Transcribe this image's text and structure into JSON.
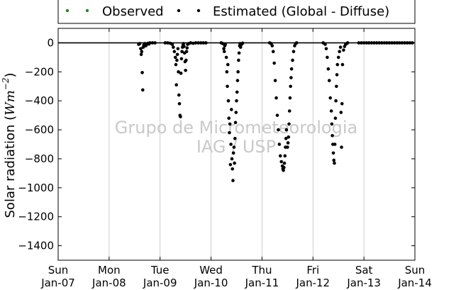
{
  "chart_data": {
    "type": "scatter",
    "ylabel": "Solar radiation (",
    "ylabel_unit_base": "Wm",
    "ylabel_unit_exp": "−2",
    "ylabel_close": ")",
    "ylim": [
      -1500,
      100
    ],
    "yticks": [
      0,
      -200,
      -400,
      -600,
      -800,
      -1000,
      -1200,
      -1400
    ],
    "ytick_labels": [
      "0",
      "−200",
      "−400",
      "−600",
      "−800",
      "−1000",
      "−1200",
      "−1400"
    ],
    "xlim": [
      0,
      7
    ],
    "xticks": [
      {
        "day": "Sun",
        "date": "Jan-07"
      },
      {
        "day": "Mon",
        "date": "Jan-08"
      },
      {
        "day": "Tue",
        "date": "Jan-09"
      },
      {
        "day": "Wed",
        "date": "Jan-10"
      },
      {
        "day": "Thu",
        "date": "Jan-11"
      },
      {
        "day": "Fri",
        "date": "Jan-12"
      },
      {
        "day": "Sat",
        "date": "Jan-13"
      },
      {
        "day": "Sun",
        "date": "Jan-14"
      }
    ],
    "grid": "vertical",
    "legend": {
      "placement": "top-center",
      "entries": [
        {
          "label": "Observed",
          "color": "#228b22"
        },
        {
          "label": "Estimated (Global - Diffuse)",
          "color": "#000000"
        }
      ]
    },
    "watermark": [
      "Grupo de Micrometeorologia",
      "IAG / USP"
    ],
    "series": [
      {
        "name": "Estimated (Global - Diffuse)",
        "color": "#000000",
        "points": [
          [
            1.58,
            -10
          ],
          [
            1.6,
            -5
          ],
          [
            1.62,
            -40
          ],
          [
            1.63,
            -80
          ],
          [
            1.64,
            -60
          ],
          [
            1.65,
            -205
          ],
          [
            1.66,
            -325
          ],
          [
            1.67,
            -30
          ],
          [
            1.68,
            -15
          ],
          [
            1.7,
            -5
          ],
          [
            1.72,
            -20
          ],
          [
            1.74,
            -10
          ],
          [
            1.76,
            -3
          ],
          [
            1.78,
            -8
          ],
          [
            1.8,
            0
          ],
          [
            1.85,
            0
          ],
          [
            1.9,
            0
          ],
          [
            2.1,
            0
          ],
          [
            2.15,
            0
          ],
          [
            2.2,
            -3
          ],
          [
            2.24,
            -10
          ],
          [
            2.26,
            -30
          ],
          [
            2.28,
            -60
          ],
          [
            2.3,
            -100
          ],
          [
            2.31,
            -150
          ],
          [
            2.32,
            -290
          ],
          [
            2.33,
            -120
          ],
          [
            2.34,
            -80
          ],
          [
            2.35,
            -40
          ],
          [
            2.36,
            -200
          ],
          [
            2.37,
            -360
          ],
          [
            2.38,
            -420
          ],
          [
            2.39,
            -500
          ],
          [
            2.4,
            -510
          ],
          [
            2.41,
            -210
          ],
          [
            2.42,
            -110
          ],
          [
            2.43,
            -60
          ],
          [
            2.44,
            -30
          ],
          [
            2.45,
            -15
          ],
          [
            2.46,
            -5
          ],
          [
            2.47,
            -25
          ],
          [
            2.48,
            -70
          ],
          [
            2.49,
            -130
          ],
          [
            2.5,
            -190
          ],
          [
            2.51,
            -120
          ],
          [
            2.52,
            -60
          ],
          [
            2.53,
            -35
          ],
          [
            2.54,
            -10
          ],
          [
            2.56,
            -5
          ],
          [
            2.6,
            0
          ],
          [
            2.65,
            -3
          ],
          [
            2.7,
            0
          ],
          [
            2.75,
            0
          ],
          [
            2.8,
            0
          ],
          [
            2.85,
            0
          ],
          [
            2.9,
            0
          ],
          [
            3.2,
            0
          ],
          [
            3.23,
            -5
          ],
          [
            3.25,
            -40
          ],
          [
            3.26,
            -60
          ],
          [
            3.27,
            -20
          ],
          [
            3.28,
            -10
          ],
          [
            3.3,
            -100
          ],
          [
            3.31,
            -200
          ],
          [
            3.32,
            -300
          ],
          [
            3.33,
            -150
          ],
          [
            3.34,
            -400
          ],
          [
            3.35,
            -520
          ],
          [
            3.36,
            -620
          ],
          [
            3.37,
            -560
          ],
          [
            3.38,
            -840
          ],
          [
            3.39,
            -700
          ],
          [
            3.4,
            -460
          ],
          [
            3.41,
            -800
          ],
          [
            3.42,
            -870
          ],
          [
            3.43,
            -950
          ],
          [
            3.44,
            -760
          ],
          [
            3.45,
            -720
          ],
          [
            3.46,
            -830
          ],
          [
            3.47,
            -660
          ],
          [
            3.48,
            -550
          ],
          [
            3.49,
            -480
          ],
          [
            3.5,
            -400
          ],
          [
            3.51,
            -340
          ],
          [
            3.52,
            -260
          ],
          [
            3.53,
            -200
          ],
          [
            3.54,
            -120
          ],
          [
            3.55,
            -70
          ],
          [
            3.56,
            -20
          ],
          [
            3.57,
            -5
          ],
          [
            3.58,
            -30
          ],
          [
            3.6,
            -10
          ],
          [
            3.62,
            -2
          ],
          [
            4.15,
            0
          ],
          [
            4.18,
            -5
          ],
          [
            4.2,
            -20
          ],
          [
            4.22,
            -60
          ],
          [
            4.24,
            -140
          ],
          [
            4.26,
            -260
          ],
          [
            4.28,
            -380
          ],
          [
            4.3,
            -500
          ],
          [
            4.32,
            -600
          ],
          [
            4.34,
            -700
          ],
          [
            4.36,
            -780
          ],
          [
            4.38,
            -820
          ],
          [
            4.4,
            -850
          ],
          [
            4.41,
            -870
          ],
          [
            4.42,
            -880
          ],
          [
            4.43,
            -860
          ],
          [
            4.44,
            -830
          ],
          [
            4.45,
            -780
          ],
          [
            4.46,
            -720
          ],
          [
            4.47,
            -660
          ],
          [
            4.48,
            -600
          ],
          [
            4.5,
            -720
          ],
          [
            4.51,
            -690
          ],
          [
            4.52,
            -650
          ],
          [
            4.53,
            -560
          ],
          [
            4.54,
            -470
          ],
          [
            4.55,
            -380
          ],
          [
            4.56,
            -300
          ],
          [
            4.57,
            -240
          ],
          [
            4.58,
            -180
          ],
          [
            4.6,
            -120
          ],
          [
            4.62,
            -60
          ],
          [
            4.64,
            -20
          ],
          [
            4.66,
            -5
          ],
          [
            4.68,
            0
          ],
          [
            5.2,
            0
          ],
          [
            5.24,
            -10
          ],
          [
            5.26,
            -40
          ],
          [
            5.28,
            -100
          ],
          [
            5.3,
            -180
          ],
          [
            5.32,
            -260
          ],
          [
            5.34,
            -380
          ],
          [
            5.36,
            -470
          ],
          [
            5.37,
            -560
          ],
          [
            5.38,
            -640
          ],
          [
            5.39,
            -700
          ],
          [
            5.4,
            -760
          ],
          [
            5.41,
            -810
          ],
          [
            5.42,
            -830
          ],
          [
            5.43,
            -700
          ],
          [
            5.44,
            -520
          ],
          [
            5.45,
            -400
          ],
          [
            5.46,
            -300
          ],
          [
            5.47,
            -220
          ],
          [
            5.48,
            -150
          ],
          [
            5.5,
            -100
          ],
          [
            5.52,
            -60
          ],
          [
            5.54,
            -30
          ],
          [
            5.55,
            -480
          ],
          [
            5.56,
            -720
          ],
          [
            5.57,
            -420
          ],
          [
            5.58,
            -150
          ],
          [
            5.6,
            -50
          ],
          [
            5.62,
            -25
          ],
          [
            5.64,
            -10
          ],
          [
            5.66,
            -5
          ],
          [
            5.68,
            0
          ],
          [
            5.9,
            0
          ],
          [
            5.95,
            0
          ],
          [
            6.0,
            0
          ],
          [
            6.05,
            0
          ],
          [
            6.1,
            0
          ],
          [
            6.15,
            0
          ],
          [
            6.2,
            0
          ],
          [
            6.25,
            0
          ],
          [
            6.3,
            0
          ],
          [
            6.35,
            0
          ],
          [
            6.4,
            0
          ],
          [
            6.45,
            0
          ],
          [
            6.5,
            0
          ],
          [
            6.55,
            0
          ],
          [
            6.6,
            0
          ],
          [
            6.65,
            0
          ],
          [
            6.7,
            0
          ],
          [
            6.75,
            0
          ],
          [
            6.8,
            0
          ],
          [
            6.85,
            0
          ],
          [
            6.9,
            0
          ],
          [
            6.95,
            0
          ]
        ]
      }
    ]
  }
}
